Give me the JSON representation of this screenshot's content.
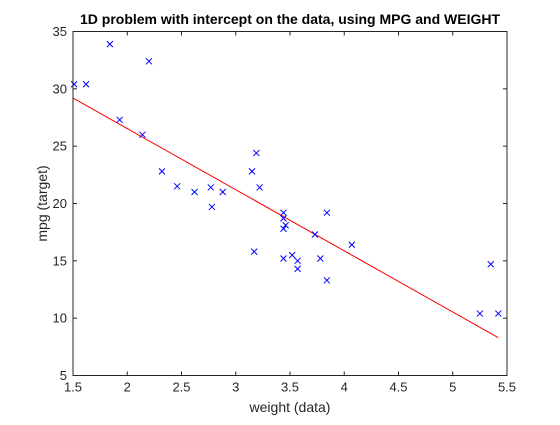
{
  "chart_data": {
    "type": "scatter",
    "title": "1D problem with intercept on the  data, using MPG and WEIGHT",
    "xlabel": "weight (data)",
    "ylabel": "mpg (target)",
    "xlim": [
      1.5,
      5.5
    ],
    "ylim": [
      5,
      35
    ],
    "xticks": [
      "1.5",
      "2",
      "2.5",
      "3",
      "3.5",
      "4",
      "4.5",
      "5",
      "5.5"
    ],
    "yticks": [
      "5",
      "10",
      "15",
      "20",
      "25",
      "30",
      "35"
    ],
    "grid": false,
    "colors": {
      "points": "#0000ff",
      "fit_line": "#ff0000",
      "axes": "#262626"
    },
    "series": [
      {
        "type": "scatter",
        "marker": "x",
        "x": [
          1.51,
          1.62,
          1.84,
          1.93,
          2.14,
          2.2,
          2.32,
          2.46,
          2.62,
          2.77,
          2.78,
          2.88,
          3.15,
          3.17,
          3.19,
          3.22,
          3.44,
          3.44,
          3.44,
          3.44,
          3.46,
          3.52,
          3.57,
          3.57,
          3.73,
          3.78,
          3.84,
          3.84,
          4.07,
          5.25,
          5.35,
          5.42
        ],
        "y": [
          30.4,
          30.4,
          33.9,
          27.3,
          26.0,
          32.4,
          22.8,
          21.5,
          21.0,
          21.4,
          19.7,
          21.0,
          22.8,
          15.8,
          24.4,
          21.4,
          19.2,
          18.7,
          17.8,
          15.2,
          18.1,
          15.5,
          15.0,
          14.3,
          17.3,
          15.2,
          19.2,
          13.3,
          16.4,
          10.4,
          14.7,
          10.4
        ]
      },
      {
        "type": "line",
        "x": [
          1.5,
          5.42
        ],
        "y": [
          29.2,
          8.3
        ]
      }
    ]
  }
}
